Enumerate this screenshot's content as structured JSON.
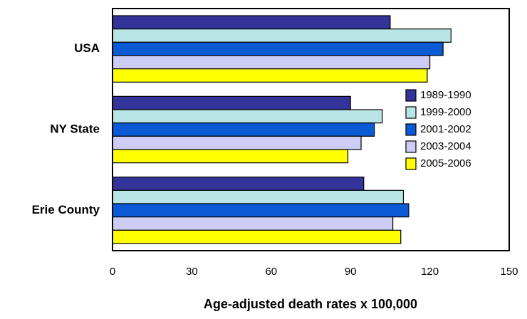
{
  "chart_data": {
    "type": "bar",
    "orientation": "horizontal",
    "xlabel": "Age-adjusted death rates x 100,000",
    "categories": [
      "USA",
      "NY State",
      "Erie County"
    ],
    "series": [
      {
        "name": "1989-1990",
        "color": "#33339a",
        "values": [
          105,
          90,
          95
        ]
      },
      {
        "name": "1999-2000",
        "color": "#b8e6e6",
        "values": [
          128,
          102,
          110
        ]
      },
      {
        "name": "2001-2002",
        "color": "#0a5ad6",
        "values": [
          125,
          99,
          112
        ]
      },
      {
        "name": "2003-2004",
        "color": "#ccccf5",
        "values": [
          120,
          94,
          106
        ]
      },
      {
        "name": "2005-2006",
        "color": "#ffff00",
        "values": [
          119,
          89,
          109
        ]
      }
    ],
    "xlim": [
      0,
      150
    ],
    "xticks": [
      0,
      30,
      60,
      90,
      120,
      150
    ],
    "grid": false,
    "legend": "right"
  }
}
